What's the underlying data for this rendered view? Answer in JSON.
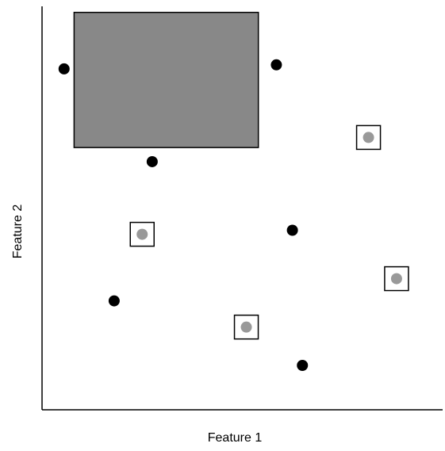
{
  "chart_data": {
    "type": "scatter",
    "xlabel": "Feature 1",
    "ylabel": "Feature 2",
    "xlim": [
      0,
      100
    ],
    "ylim": [
      0,
      100
    ],
    "grid": false,
    "legend": "none",
    "ticks": false,
    "region": {
      "shape": "rectangle",
      "x": [
        8,
        54
      ],
      "y": [
        65,
        98.5
      ],
      "fill": "#888888",
      "stroke": "#000000"
    },
    "series": [
      {
        "marker": "filled-circle",
        "color": "#000000",
        "points": [
          {
            "x": 5.5,
            "y": 84.5
          },
          {
            "x": 58.5,
            "y": 85.5
          },
          {
            "x": 27.5,
            "y": 61.5
          },
          {
            "x": 62.5,
            "y": 44.5
          },
          {
            "x": 18,
            "y": 27
          },
          {
            "x": 65,
            "y": 11
          }
        ]
      },
      {
        "marker": "boxed-circle",
        "color": "#999999",
        "box_stroke": "#000000",
        "points": [
          {
            "x": 81.5,
            "y": 67.5
          },
          {
            "x": 25,
            "y": 43.5
          },
          {
            "x": 88.5,
            "y": 32.5
          },
          {
            "x": 51,
            "y": 20.5
          }
        ]
      }
    ]
  }
}
